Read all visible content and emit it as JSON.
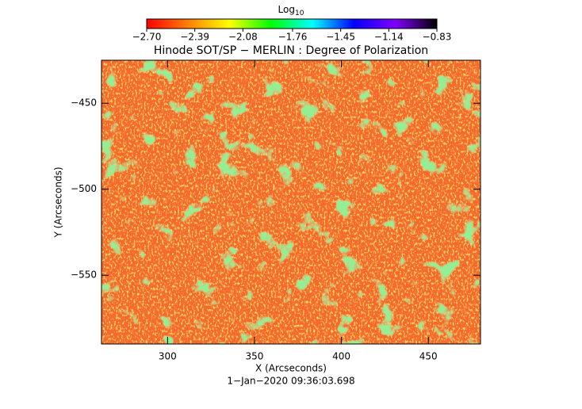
{
  "chart_data": {
    "type": "image",
    "title": "Hinode SOT/SP − MERLIN : Degree of Polarization",
    "xlabel": "X (Arcseconds)",
    "ylabel": "Y (Arcseconds)",
    "footer": "1−Jan−2020 09:36:03.698",
    "xlim": [
      262,
      480
    ],
    "ylim": [
      -590,
      -425
    ],
    "xticks": [
      300,
      350,
      400,
      450
    ],
    "yticks": [
      {
        "value": -450,
        "label": "−450"
      },
      {
        "value": -500,
        "label": "−500"
      },
      {
        "value": -550,
        "label": "−550"
      }
    ],
    "colorbar": {
      "label": "Log",
      "label_sub": "10",
      "clim": [
        -2.7,
        -0.83
      ],
      "ticks": [
        {
          "value": -2.7,
          "label": "−2.70"
        },
        {
          "value": -2.39,
          "label": "−2.39"
        },
        {
          "value": -2.08,
          "label": "−2.08"
        },
        {
          "value": -1.76,
          "label": "−1.76"
        },
        {
          "value": -1.45,
          "label": "−1.45"
        },
        {
          "value": -1.14,
          "label": "−1.14"
        },
        {
          "value": -0.83,
          "label": "−0.83"
        }
      ],
      "colormap": [
        "#ff0000",
        "#ff8000",
        "#ffff00",
        "#00ff00",
        "#00ffff",
        "#0000ff",
        "#8000ff",
        "#000000"
      ]
    }
  }
}
